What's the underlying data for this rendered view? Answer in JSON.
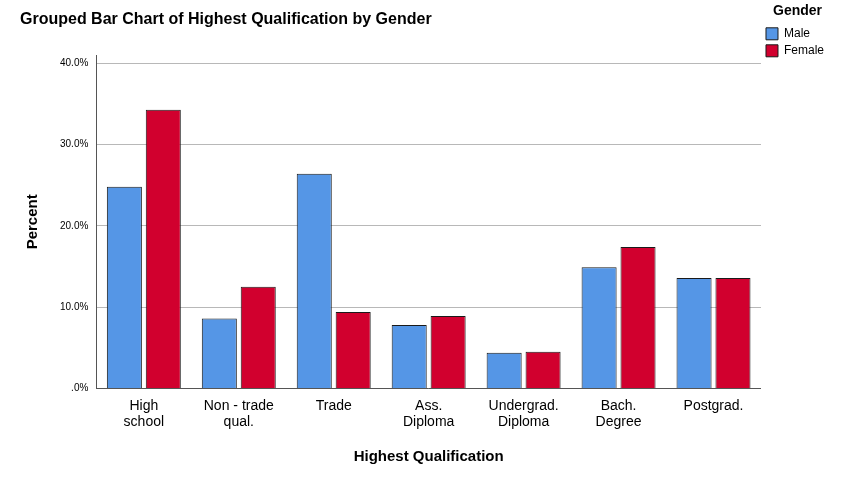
{
  "chart_data": {
    "type": "bar",
    "title": "Grouped Bar Chart of Highest Qualification by Gender",
    "x_label": "Highest Qualification",
    "y_label": "Percent",
    "legend_title": "Gender",
    "categories": [
      "High\nschool",
      "Non - trade\nqual.",
      "Trade",
      "Ass.\nDiploma",
      "Undergrad.\nDiploma",
      "Bach.\nDegree",
      "Postgrad."
    ],
    "series": [
      {
        "name": "Male",
        "color": "#5596e6",
        "values": [
          24.8,
          8.6,
          26.4,
          7.8,
          4.4,
          14.9,
          13.6
        ]
      },
      {
        "name": "Female",
        "color": "#d1002e",
        "values": [
          34.3,
          12.5,
          9.4,
          8.9,
          4.5,
          17.4,
          13.6
        ]
      }
    ],
    "ylim": [
      0,
      41
    ],
    "yticks": [
      {
        "value": 0,
        "label": ".0%"
      },
      {
        "value": 10,
        "label": "10.0%"
      },
      {
        "value": 20,
        "label": "20.0%"
      },
      {
        "value": 30,
        "label": "30.0%"
      },
      {
        "value": 40,
        "label": "40.0%"
      }
    ],
    "grid": true,
    "legend": "right"
  }
}
